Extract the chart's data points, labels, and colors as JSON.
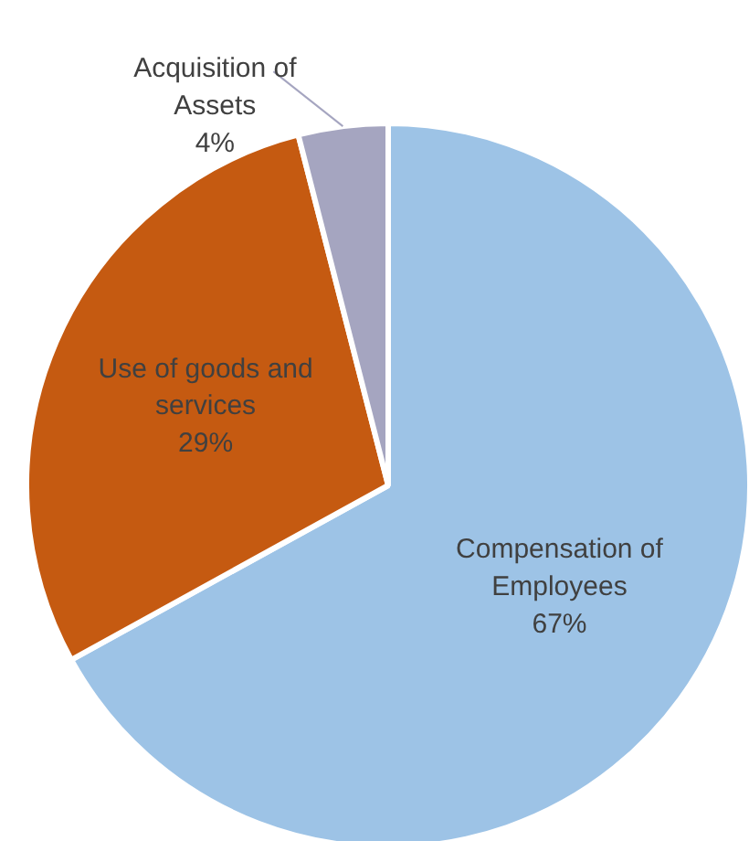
{
  "chart_data": {
    "type": "pie",
    "categories": [
      "Compensation of Employees",
      "Use of goods and services",
      "Acquisition of Assets"
    ],
    "values": [
      67,
      29,
      4
    ],
    "colors": [
      "#9dc3e6",
      "#c55a11",
      "#a5a5c0"
    ],
    "value_labels": [
      "67%",
      "29%",
      "4%"
    ]
  }
}
